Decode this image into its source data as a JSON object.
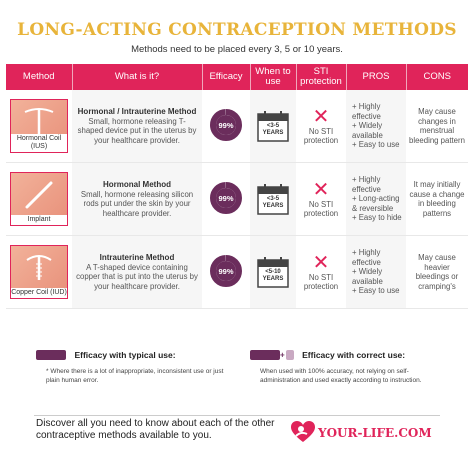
{
  "title": "LONG-ACTING CONTRACEPTION METHODS",
  "subtitle": "Methods need to be placed every 3, 5 or 10 years.",
  "headers": {
    "method": "Method",
    "what": "What is it?",
    "efficacy": "Efficacy",
    "when": "When to use",
    "sti": "STI protection",
    "pros": "PROS",
    "cons": "CONS"
  },
  "rows": [
    {
      "thumb_caption": "Hormonal Coil (IUS)",
      "what_title": "Hormonal / Intrauterine Method",
      "what_desc": "Small, hormone releasing T-shaped device put in the uterus by your healthcare provider.",
      "efficacy": "99%",
      "efficacy_fraction": 0.99,
      "when": "<3-5 YEARS",
      "sti": "No STI protection",
      "pros": [
        "+ Highly effective",
        "+ Widely available",
        "+ Easy to use"
      ],
      "cons": "May cause changes in menstrual bleeding pattern"
    },
    {
      "thumb_caption": "Implant",
      "what_title": "Hormonal Method",
      "what_desc": "Small, hormone releasing silicon rods put under the skin by your healthcare provider.",
      "efficacy": "99%",
      "efficacy_fraction": 0.99,
      "when": "<3-5 YEARS",
      "sti": "No STI protection",
      "pros": [
        "+ Highly effective",
        "+ Long-acting & reversible",
        "+ Easy to hide"
      ],
      "cons": "It may initially cause a change in bleeding patterns"
    },
    {
      "thumb_caption": "Copper Coil (IUD)",
      "what_title": "Intrauterine Method",
      "what_desc": "A T-shaped device containing copper that is put into the uterus by your healthcare provider.",
      "efficacy": "99%",
      "efficacy_fraction": 0.99,
      "when": "<5-10 YEARS",
      "sti": "No STI protection",
      "pros": [
        "+ Highly effective",
        "+ Widely available",
        "+ Easy to use"
      ],
      "cons": "May cause heavier bleedings or cramping's"
    }
  ],
  "legend": {
    "typical_title": "Efficacy with typical use:",
    "typical_note": "* Where there is a lot of inappropriate, inconsistent use or just plain human error.",
    "correct_title": "Efficacy with correct use:",
    "correct_note": "When used with 100% accuracy, not relying on self-administration and used exactly according to instruction."
  },
  "footer": {
    "discover": "Discover all you need to know about each of the other contraceptive methods available to you.",
    "logo": "YOUR-LIFE.COM"
  },
  "colors": {
    "header": "#e0245a",
    "ring": "#6b2d5c",
    "title": "#e8b43a"
  }
}
